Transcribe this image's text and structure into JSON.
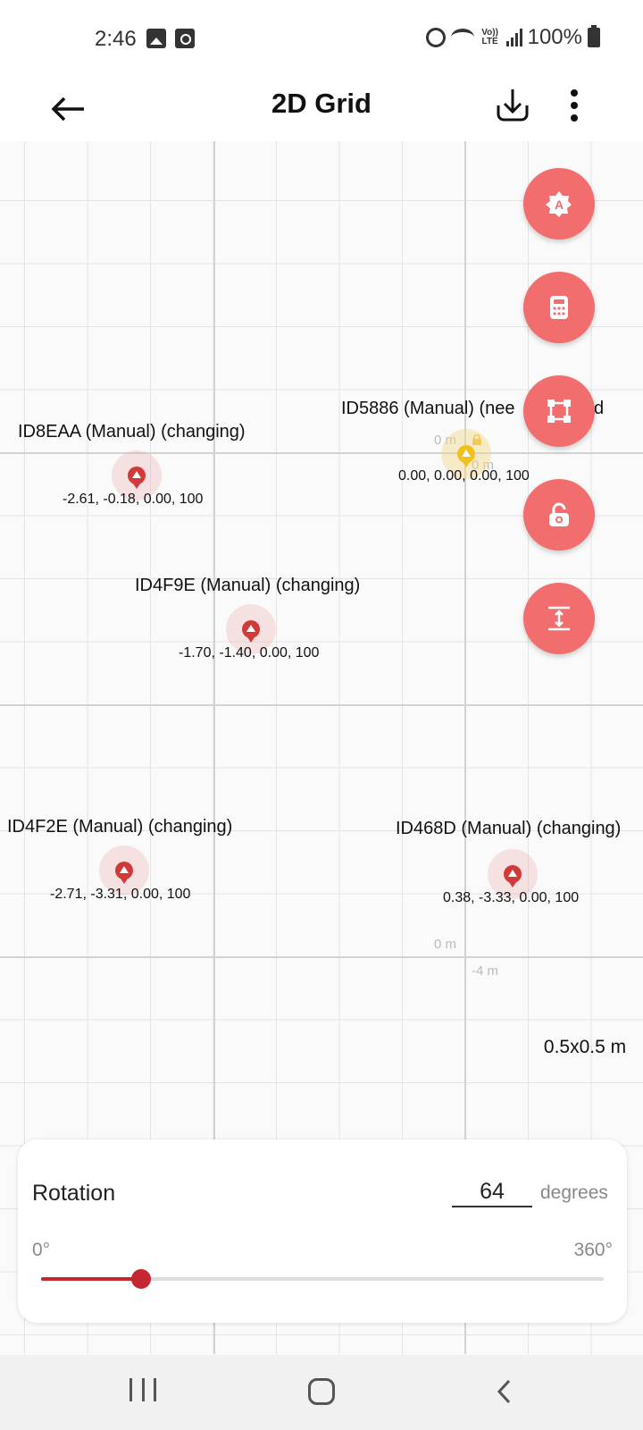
{
  "status_bar": {
    "time": "2:46",
    "battery": "100%",
    "network": "Vo)) LTE"
  },
  "app_bar": {
    "title": "2D Grid",
    "icons": [
      "back-arrow-icon",
      "download-icon",
      "more-vert-icon"
    ]
  },
  "grid": {
    "axis_labels": {
      "x_zero": "0 m",
      "y_zero_top": "0 m",
      "y_zero_bottom": "0 m",
      "y_minus4": "-4 m",
      "x_zero_lower": "0 m"
    },
    "scale": "0.5x0.5 m",
    "nodes": [
      {
        "label": "ID8EAA (Manual) (changing)",
        "coords": "-2.61, -0.18, 0.00, 100",
        "type": "tag"
      },
      {
        "label": "ID5886 (Manual) (nee",
        "label_tail": "d",
        "coords": "0.00, 0.00, 0.00, 100",
        "type": "anchor"
      },
      {
        "label": "ID4F9E (Manual) (changing)",
        "coords": "-1.70, -1.40, 0.00, 100",
        "type": "tag"
      },
      {
        "label": "ID4F2E (Manual) (changing)",
        "coords": "-2.71, -3.31, 0.00, 100",
        "type": "tag"
      },
      {
        "label": "ID468D (Manual) (changing)",
        "coords": "0.38, -3.33, 0.00, 100",
        "type": "tag"
      }
    ]
  },
  "fabs": [
    {
      "name": "auto-positioning-button",
      "icon": "auto-a-badge-icon"
    },
    {
      "name": "calculator-button",
      "icon": "calculator-icon"
    },
    {
      "name": "bounding-box-button",
      "icon": "bounding-box-icon"
    },
    {
      "name": "lock-button",
      "icon": "lock-icon"
    },
    {
      "name": "vertical-fit-button",
      "icon": "vertical-arrows-icon"
    }
  ],
  "rotation": {
    "title": "Rotation",
    "value": "64",
    "unit": "degrees",
    "min_label": "0°",
    "max_label": "360°",
    "fraction": 0.178,
    "accent_color": "#c5262f"
  },
  "colors": {
    "fab": "#f26d6d",
    "tag_marker": "#d23a3a",
    "anchor_marker": "#f2c01a"
  }
}
